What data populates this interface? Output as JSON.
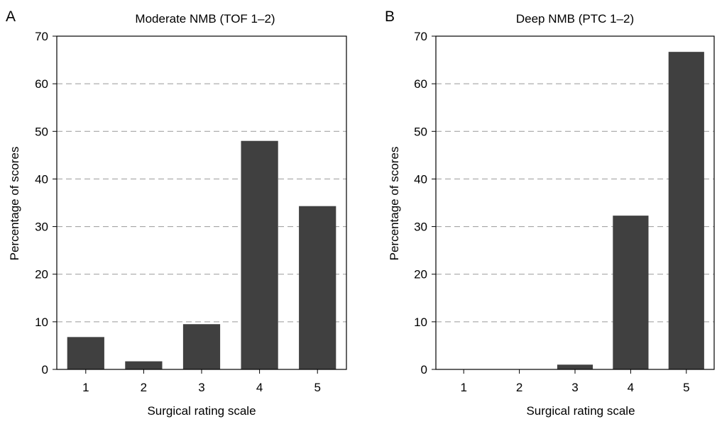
{
  "chart_data": [
    {
      "type": "bar",
      "panel_label": "A",
      "title": "Moderate NMB (TOF 1–2)",
      "xlabel": "Surgical rating scale",
      "ylabel": "Percentage of scores",
      "categories": [
        "1",
        "2",
        "3",
        "4",
        "5"
      ],
      "values": [
        6.8,
        1.7,
        9.5,
        48.0,
        34.3
      ],
      "ylim": [
        0,
        70
      ],
      "yticks": [
        "0",
        "10",
        "20",
        "30",
        "40",
        "50",
        "60",
        "70"
      ],
      "grid": "horizontal-dashed",
      "bar_color": "#404040"
    },
    {
      "type": "bar",
      "panel_label": "B",
      "title": "Deep NMB (PTC 1–2)",
      "xlabel": "Surgical rating scale",
      "ylabel": "Percentage of scores",
      "categories": [
        "1",
        "2",
        "3",
        "4",
        "5"
      ],
      "values": [
        0,
        0,
        1.0,
        32.3,
        66.7
      ],
      "ylim": [
        0,
        70
      ],
      "yticks": [
        "0",
        "10",
        "20",
        "30",
        "40",
        "50",
        "60",
        "70"
      ],
      "grid": "horizontal-dashed",
      "bar_color": "#404040"
    }
  ]
}
